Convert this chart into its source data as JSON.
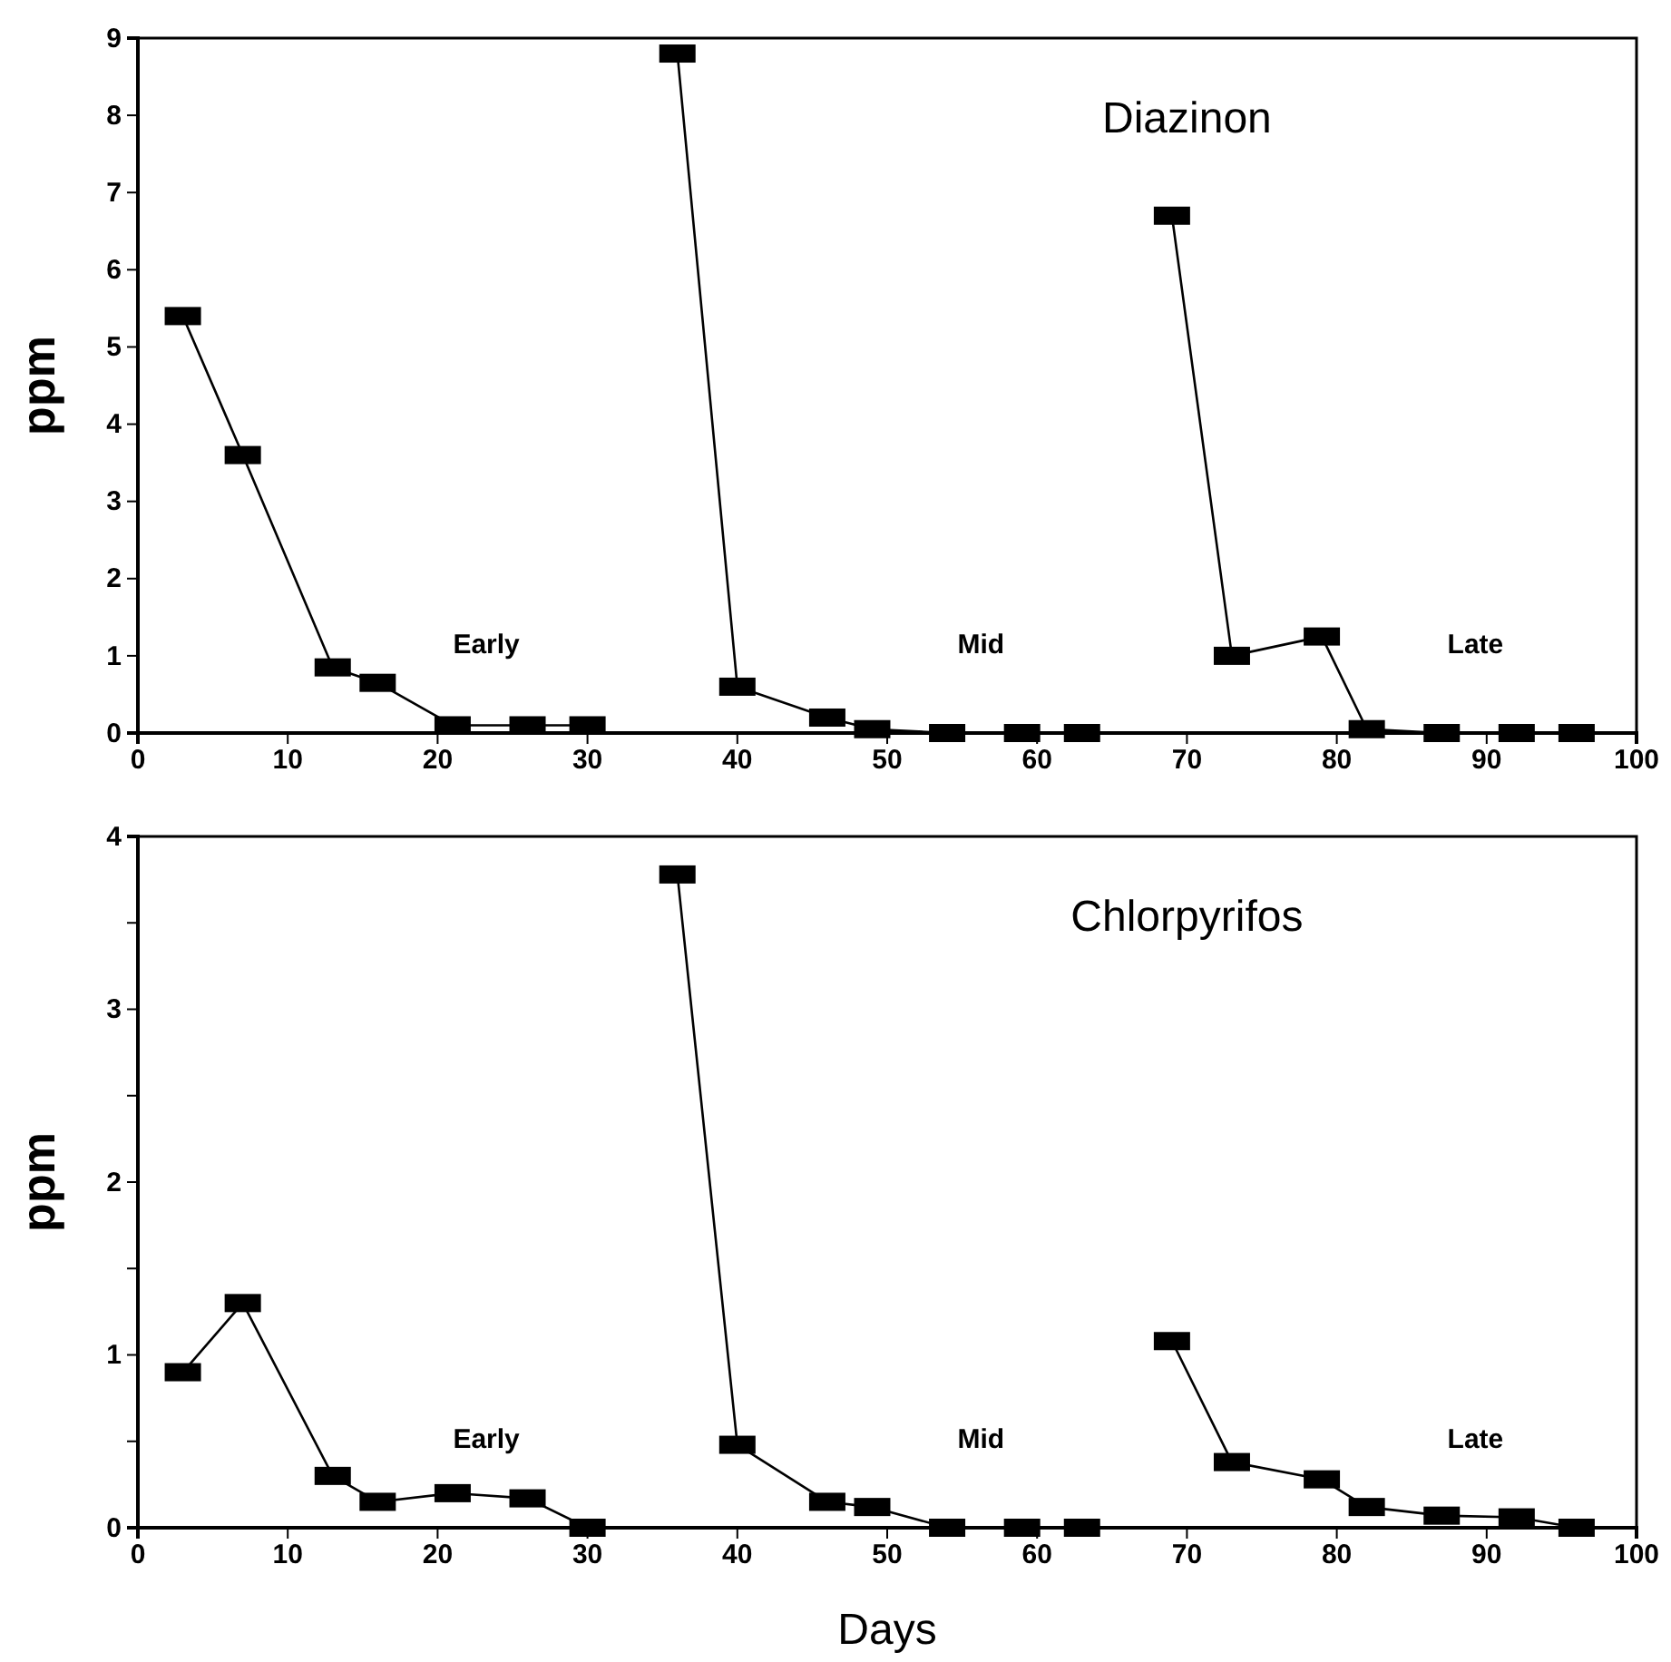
{
  "chart_data": [
    {
      "type": "line",
      "title": "Diazinon",
      "ylabel": "ppm",
      "xlim": [
        0,
        100
      ],
      "xticks": [
        0,
        10,
        20,
        30,
        40,
        50,
        60,
        70,
        80,
        90,
        100
      ],
      "ylim": [
        0,
        9
      ],
      "yticks": [
        0,
        1,
        2,
        3,
        4,
        5,
        6,
        7,
        8,
        9
      ],
      "marker": "square",
      "line_style": "solid",
      "grid": false,
      "legend": false,
      "series": [
        {
          "name": "Early",
          "color": "#000000",
          "x": [
            3,
            7,
            13,
            16,
            21,
            26,
            30
          ],
          "values": [
            5.4,
            3.6,
            0.85,
            0.65,
            0.1,
            0.1,
            0.1
          ]
        },
        {
          "name": "Mid",
          "color": "#000000",
          "x": [
            36,
            40,
            46,
            49,
            54,
            59,
            63
          ],
          "values": [
            8.8,
            0.6,
            0.2,
            0.05,
            0,
            0,
            0
          ]
        },
        {
          "name": "Late",
          "color": "#000000",
          "x": [
            69,
            73,
            79,
            82,
            87,
            92,
            96
          ],
          "values": [
            6.7,
            1.0,
            1.25,
            0.05,
            0,
            0,
            0
          ]
        }
      ]
    },
    {
      "type": "line",
      "title": "Chlorpyrifos",
      "xlabel": "Days",
      "ylabel": "ppm",
      "xlim": [
        0,
        100
      ],
      "xticks": [
        0,
        10,
        20,
        30,
        40,
        50,
        60,
        70,
        80,
        90,
        100
      ],
      "ylim": [
        0,
        4
      ],
      "yticks": [
        0,
        {
          "value": 0.5,
          "label": null
        },
        1,
        {
          "value": 1.5,
          "label": null
        },
        2,
        {
          "value": 2.5,
          "label": null
        },
        3,
        {
          "value": 3.5,
          "label": null
        },
        4
      ],
      "marker": "square",
      "line_style": "solid",
      "grid": false,
      "legend": false,
      "series": [
        {
          "name": "Early",
          "color": "#000000",
          "x": [
            3,
            7,
            13,
            16,
            21,
            26,
            30
          ],
          "values": [
            0.9,
            1.3,
            0.3,
            0.15,
            0.2,
            0.17,
            0
          ]
        },
        {
          "name": "Mid",
          "color": "#000000",
          "x": [
            36,
            40,
            46,
            49,
            54,
            59,
            63
          ],
          "values": [
            3.78,
            0.48,
            0.15,
            0.12,
            0,
            0,
            0
          ]
        },
        {
          "name": "Late",
          "color": "#000000",
          "x": [
            69,
            73,
            79,
            82,
            87,
            92,
            96
          ],
          "values": [
            1.08,
            0.38,
            0.28,
            0.12,
            0.07,
            0.06,
            0
          ]
        }
      ]
    }
  ]
}
